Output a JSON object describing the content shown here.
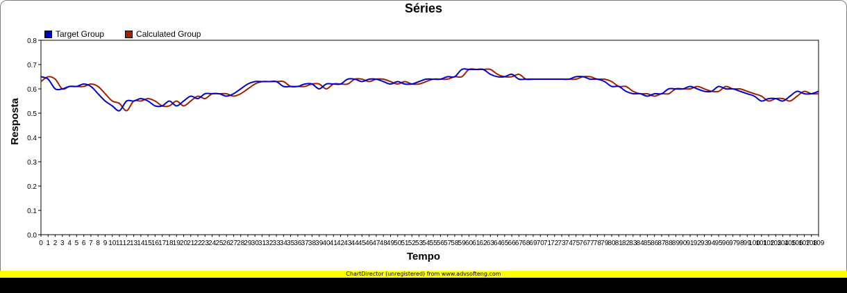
{
  "title": "Séries",
  "watermark": "ChartDirector (unregistered) from www.advsofteng.com",
  "chart_data": {
    "type": "line",
    "title": "Séries",
    "xlabel": "Tempo",
    "ylabel": "Resposta",
    "ylim": [
      0,
      0.8
    ],
    "yticks": [
      0,
      0.1,
      0.2,
      0.3,
      0.4,
      0.5,
      0.6,
      0.7,
      0.8
    ],
    "xlim": [
      0,
      109
    ],
    "grid": false,
    "legend_position": "top-left",
    "series": [
      {
        "name": "Target Group",
        "color": "#0000cc",
        "values": [
          0.65,
          0.64,
          0.6,
          0.6,
          0.61,
          0.61,
          0.62,
          0.61,
          0.58,
          0.55,
          0.53,
          0.51,
          0.55,
          0.55,
          0.56,
          0.55,
          0.53,
          0.53,
          0.55,
          0.53,
          0.55,
          0.57,
          0.56,
          0.58,
          0.58,
          0.58,
          0.57,
          0.58,
          0.6,
          0.62,
          0.63,
          0.63,
          0.63,
          0.63,
          0.61,
          0.61,
          0.61,
          0.62,
          0.62,
          0.6,
          0.62,
          0.62,
          0.62,
          0.64,
          0.64,
          0.63,
          0.64,
          0.64,
          0.63,
          0.62,
          0.63,
          0.62,
          0.62,
          0.63,
          0.64,
          0.64,
          0.64,
          0.65,
          0.65,
          0.68,
          0.68,
          0.68,
          0.68,
          0.66,
          0.65,
          0.65,
          0.66,
          0.64,
          0.64,
          0.64,
          0.64,
          0.64,
          0.64,
          0.64,
          0.64,
          0.65,
          0.65,
          0.64,
          0.64,
          0.63,
          0.61,
          0.61,
          0.59,
          0.58,
          0.58,
          0.57,
          0.58,
          0.58,
          0.6,
          0.6,
          0.6,
          0.61,
          0.6,
          0.59,
          0.59,
          0.61,
          0.6,
          0.6,
          0.59,
          0.58,
          0.57,
          0.55,
          0.56,
          0.56,
          0.55,
          0.57,
          0.59,
          0.58,
          0.58,
          0.59
        ]
      },
      {
        "name": "Calculated Group",
        "color": "#a02000",
        "values": [
          0.63,
          0.65,
          0.64,
          0.6,
          0.61,
          0.61,
          0.61,
          0.62,
          0.61,
          0.58,
          0.55,
          0.54,
          0.51,
          0.55,
          0.55,
          0.56,
          0.55,
          0.53,
          0.53,
          0.55,
          0.53,
          0.55,
          0.57,
          0.56,
          0.58,
          0.58,
          0.58,
          0.57,
          0.58,
          0.6,
          0.62,
          0.63,
          0.63,
          0.63,
          0.63,
          0.61,
          0.61,
          0.61,
          0.62,
          0.62,
          0.6,
          0.62,
          0.62,
          0.62,
          0.64,
          0.64,
          0.63,
          0.64,
          0.64,
          0.63,
          0.62,
          0.63,
          0.62,
          0.62,
          0.63,
          0.64,
          0.64,
          0.64,
          0.65,
          0.65,
          0.68,
          0.68,
          0.68,
          0.68,
          0.66,
          0.65,
          0.65,
          0.66,
          0.64,
          0.64,
          0.64,
          0.64,
          0.64,
          0.64,
          0.64,
          0.64,
          0.65,
          0.65,
          0.64,
          0.64,
          0.63,
          0.61,
          0.61,
          0.59,
          0.58,
          0.58,
          0.57,
          0.58,
          0.58,
          0.6,
          0.6,
          0.6,
          0.61,
          0.6,
          0.59,
          0.59,
          0.61,
          0.6,
          0.6,
          0.59,
          0.58,
          0.57,
          0.55,
          0.56,
          0.56,
          0.55,
          0.57,
          0.59,
          0.58,
          0.58
        ]
      }
    ]
  }
}
